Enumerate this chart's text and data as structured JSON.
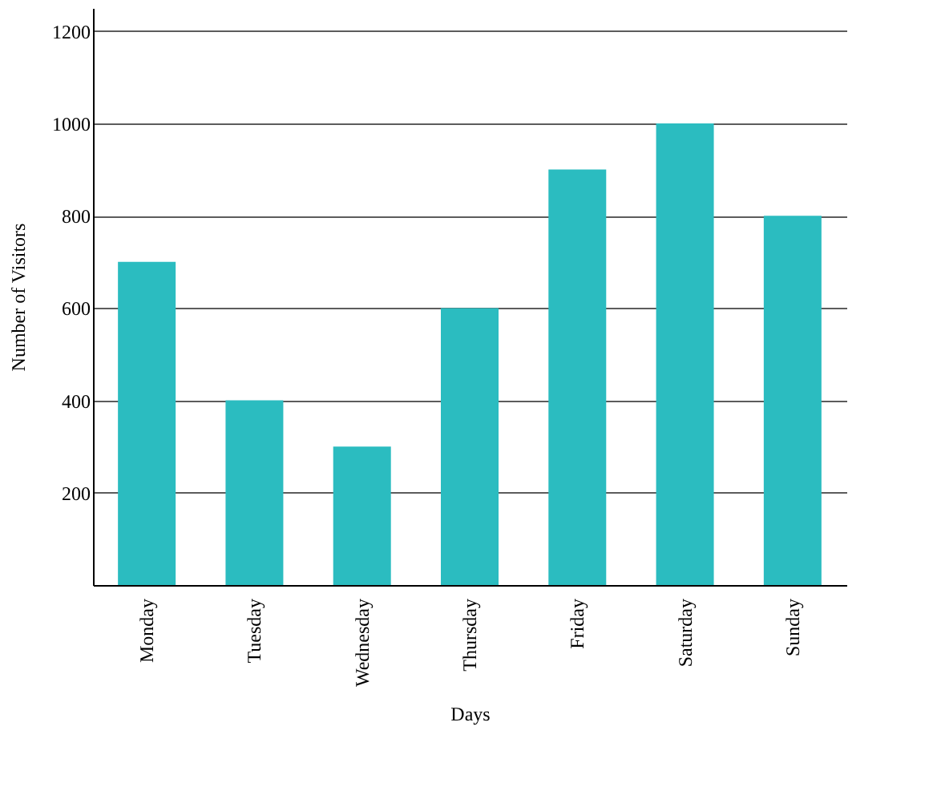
{
  "chart_data": {
    "type": "bar",
    "xlabel": "Days",
    "ylabel": "Number of Visitors",
    "categories": [
      "Monday",
      "Tuesday",
      "Wednesday",
      "Thursday",
      "Friday",
      "Saturday",
      "Sunday"
    ],
    "values": [
      700,
      400,
      300,
      600,
      900,
      1000,
      800
    ],
    "color": "#2bbcc0",
    "ylim": [
      0,
      1250
    ],
    "yticks": [
      200,
      400,
      600,
      800,
      1000,
      1200
    ],
    "grid": "y"
  }
}
